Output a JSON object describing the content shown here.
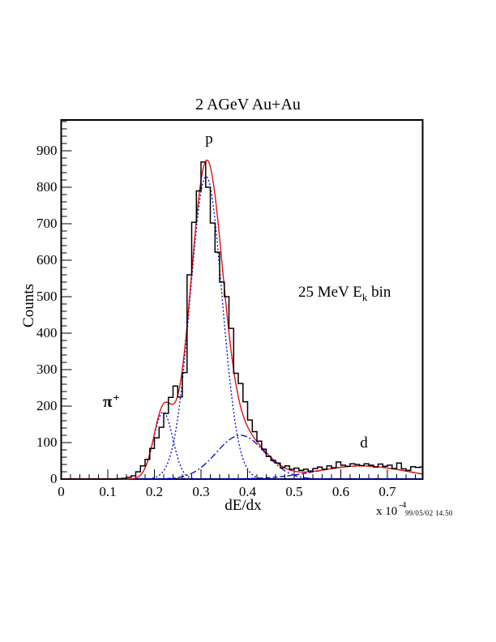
{
  "title": "2 AGeV Au+Au",
  "axes": {
    "y_label": "Counts",
    "x_label": "dE/dx",
    "scale_prefix": "x 10",
    "scale_exponent": "-4",
    "x_tick_labels": [
      "0",
      "0.1",
      "0.2",
      "0.3",
      "0.4",
      "0.5",
      "0.6",
      "0.7"
    ],
    "x_tick_values": [
      0,
      0.1,
      0.2,
      0.3,
      0.4,
      0.5,
      0.6,
      0.7
    ],
    "y_tick_labels": [
      "0",
      "100",
      "200",
      "300",
      "400",
      "500",
      "600",
      "700",
      "800",
      "900"
    ],
    "y_tick_values": [
      0,
      100,
      200,
      300,
      400,
      500,
      600,
      700,
      800,
      900
    ]
  },
  "annotations": {
    "proton": "p",
    "pion": "π",
    "pion_sup": "+",
    "deuteron": "d",
    "bin_pre": "25 MeV E",
    "bin_sub": "k",
    "bin_post": " bin"
  },
  "footer": {
    "timestamp": "99/05/02  14.50"
  },
  "colors": {
    "histogram": "#000000",
    "fit_total": "#e01010",
    "fit_components": "#0000d0",
    "frame": "#000000"
  },
  "chart_data": {
    "type": "histogram+fit",
    "title": "2 AGeV Au+Au",
    "xlabel": "dE/dx (x 10^-4)",
    "ylabel": "Counts",
    "xlim": [
      0,
      0.7765
    ],
    "ylim": [
      0,
      985
    ],
    "x_minor_step": 0.02,
    "y_minor_step": 20,
    "bin_start": 0,
    "bin_width": 0.01,
    "bin_counts": [
      0,
      0,
      0,
      0,
      0,
      0,
      0,
      0,
      0,
      0,
      0,
      0,
      1,
      2,
      5,
      9,
      20,
      36,
      54,
      84,
      113,
      142,
      180,
      224,
      255,
      225,
      292,
      560,
      704,
      790,
      869,
      800,
      702,
      622,
      540,
      500,
      413,
      290,
      262,
      212,
      162,
      130,
      104,
      82,
      62,
      51,
      44,
      31,
      36,
      27,
      30,
      24,
      27,
      22,
      29,
      33,
      27,
      36,
      31,
      47,
      38,
      35,
      42,
      40,
      37,
      42,
      38,
      33,
      41,
      35,
      38,
      29,
      44,
      28,
      24,
      34,
      32,
      33
    ],
    "fit_components": [
      {
        "name": "pion",
        "amplitude": 184,
        "mean": 0.219,
        "sigma": 0.0205,
        "dash": "2,2.5"
      },
      {
        "name": "proton",
        "amplitude": 830,
        "mean": 0.311,
        "sigma": 0.034,
        "dash": "2,2.5"
      },
      {
        "name": "proton-tail",
        "amplitude": 120,
        "mean": 0.385,
        "sigma": 0.052,
        "dash": "8,3,2,3"
      },
      {
        "name": "deuteron",
        "amplitude": 36,
        "mean": 0.645,
        "sigma": 0.095,
        "dash": "6,3"
      }
    ],
    "fit_total_is_sum_of_components": true,
    "legend": "none",
    "grid": false
  }
}
